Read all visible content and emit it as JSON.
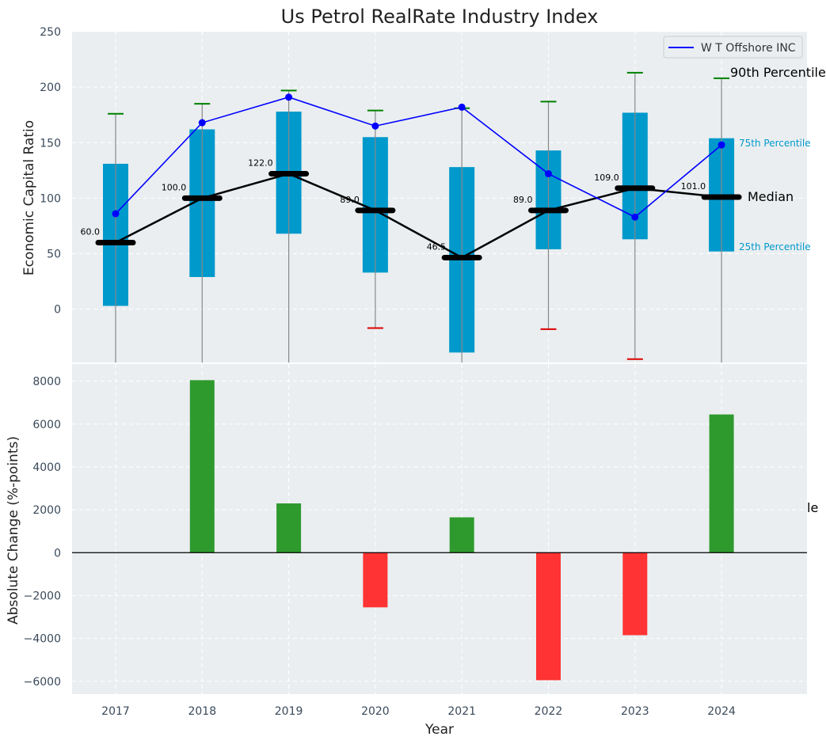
{
  "chart_data": [
    {
      "type": "box",
      "title": "Us Petrol RealRate Industry Index",
      "ylabel": "Economic Capital Ratio",
      "ylim": [
        -48,
        250
      ],
      "yticks": [
        0,
        50,
        100,
        150,
        200,
        250
      ],
      "grid": true,
      "legend_position": "top-right",
      "categories": [
        "2017",
        "2018",
        "2019",
        "2020",
        "2021",
        "2022",
        "2023",
        "2024"
      ],
      "boxes": {
        "p25": [
          3,
          29,
          68,
          33,
          -39,
          54,
          63,
          52
        ],
        "p75": [
          131,
          162,
          178,
          155,
          128,
          143,
          177,
          154
        ],
        "median": [
          60.0,
          100.0,
          122.0,
          89.0,
          46.5,
          89.0,
          109.0,
          101.0
        ],
        "p90": [
          176,
          185,
          197,
          179,
          181,
          187,
          213,
          208
        ],
        "p10": [
          null,
          null,
          null,
          -17,
          null,
          -18,
          -45,
          null
        ]
      },
      "median_labels": [
        "60.0",
        "100.0",
        "122.0",
        "89.0",
        "46.5",
        "89.0",
        "109.0",
        "101.0"
      ],
      "series": [
        {
          "name": "W T Offshore INC",
          "values": [
            86,
            168,
            191,
            165,
            182,
            122,
            83,
            148
          ]
        }
      ],
      "annotations": {
        "p90": "90th Percentile",
        "p75": "75th Percentile",
        "median": "Median",
        "p25": "25th Percentile"
      },
      "colors": {
        "box": "#0099cc",
        "whisker": "#888888",
        "median": "#000000",
        "series": "#0000ff",
        "p90_cap": "#008000",
        "p10_cap": "#dd0000",
        "p75_label": "#0099cc",
        "p25_label": "#0099cc",
        "panel_bg": "#eaeef0"
      }
    },
    {
      "type": "bar",
      "ylabel": "Absolute Change (%-points)",
      "xlabel": "Year",
      "ylim": [
        -6600,
        8800
      ],
      "yticks": [
        -6000,
        -4000,
        -2000,
        0,
        2000,
        4000,
        6000,
        8000
      ],
      "grid": true,
      "categories": [
        "2017",
        "2018",
        "2019",
        "2020",
        "2021",
        "2022",
        "2023",
        "2024"
      ],
      "values": [
        null,
        8050,
        2300,
        -2550,
        1650,
        -5950,
        -3850,
        6450
      ],
      "colors": {
        "positive": "#2e9a2e",
        "negative": "#ff3333",
        "zero_line": "#000000"
      },
      "side_label": "le"
    }
  ]
}
